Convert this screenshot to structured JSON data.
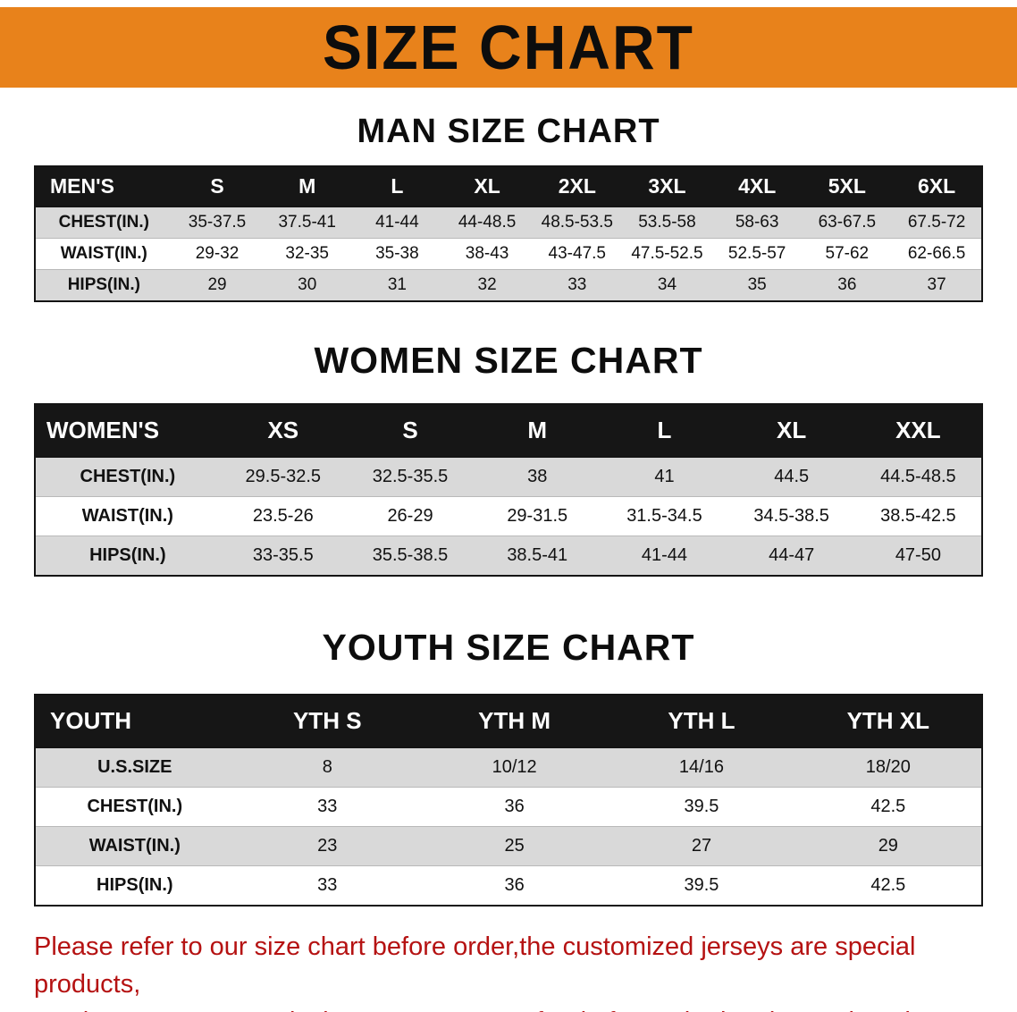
{
  "banner": {
    "title": "SIZE CHART"
  },
  "colors": {
    "banner_bg": "#E8821B",
    "header_bg": "#161616",
    "stripe": "#D9D9D9",
    "notice": "#B51212"
  },
  "sections": [
    {
      "id": "men",
      "heading": "MAN SIZE CHART",
      "table": {
        "header": [
          "MEN'S",
          "S",
          "M",
          "L",
          "XL",
          "2XL",
          "3XL",
          "4XL",
          "5XL",
          "6XL"
        ],
        "rows": [
          [
            "CHEST(IN.)",
            "35-37.5",
            "37.5-41",
            "41-44",
            "44-48.5",
            "48.5-53.5",
            "53.5-58",
            "58-63",
            "63-67.5",
            "67.5-72"
          ],
          [
            "WAIST(IN.)",
            "29-32",
            "32-35",
            "35-38",
            "38-43",
            "43-47.5",
            "47.5-52.5",
            "52.5-57",
            "57-62",
            "62-66.5"
          ],
          [
            "HIPS(IN.)",
            "29",
            "30",
            "31",
            "32",
            "33",
            "34",
            "35",
            "36",
            "37"
          ]
        ]
      }
    },
    {
      "id": "women",
      "heading": "WOMEN SIZE CHART",
      "table": {
        "header": [
          "WOMEN'S",
          "XS",
          "S",
          "M",
          "L",
          "XL",
          "XXL"
        ],
        "rows": [
          [
            "CHEST(IN.)",
            "29.5-32.5",
            "32.5-35.5",
            "38",
            "41",
            "44.5",
            "44.5-48.5"
          ],
          [
            "WAIST(IN.)",
            "23.5-26",
            "26-29",
            "29-31.5",
            "31.5-34.5",
            "34.5-38.5",
            "38.5-42.5"
          ],
          [
            "HIPS(IN.)",
            "33-35.5",
            "35.5-38.5",
            "38.5-41",
            "41-44",
            "44-47",
            "47-50"
          ]
        ]
      }
    },
    {
      "id": "youth",
      "heading": "YOUTH SIZE CHART",
      "table": {
        "header": [
          "YOUTH",
          "YTH S",
          "YTH M",
          "YTH L",
          "YTH XL"
        ],
        "rows": [
          [
            "U.S.SIZE",
            "8",
            "10/12",
            "14/16",
            "18/20"
          ],
          [
            "CHEST(IN.)",
            "33",
            "36",
            "39.5",
            "42.5"
          ],
          [
            "WAIST(IN.)",
            "23",
            "25",
            "27",
            "29"
          ],
          [
            "HIPS(IN.)",
            "33",
            "36",
            "39.5",
            "42.5"
          ]
        ]
      }
    }
  ],
  "footer": {
    "lines": [
      "Please refer to our size chart before order,the customized jerseys are special products,",
      "we don't accept cancel, change, teturn or refund after order has been placed!"
    ]
  }
}
